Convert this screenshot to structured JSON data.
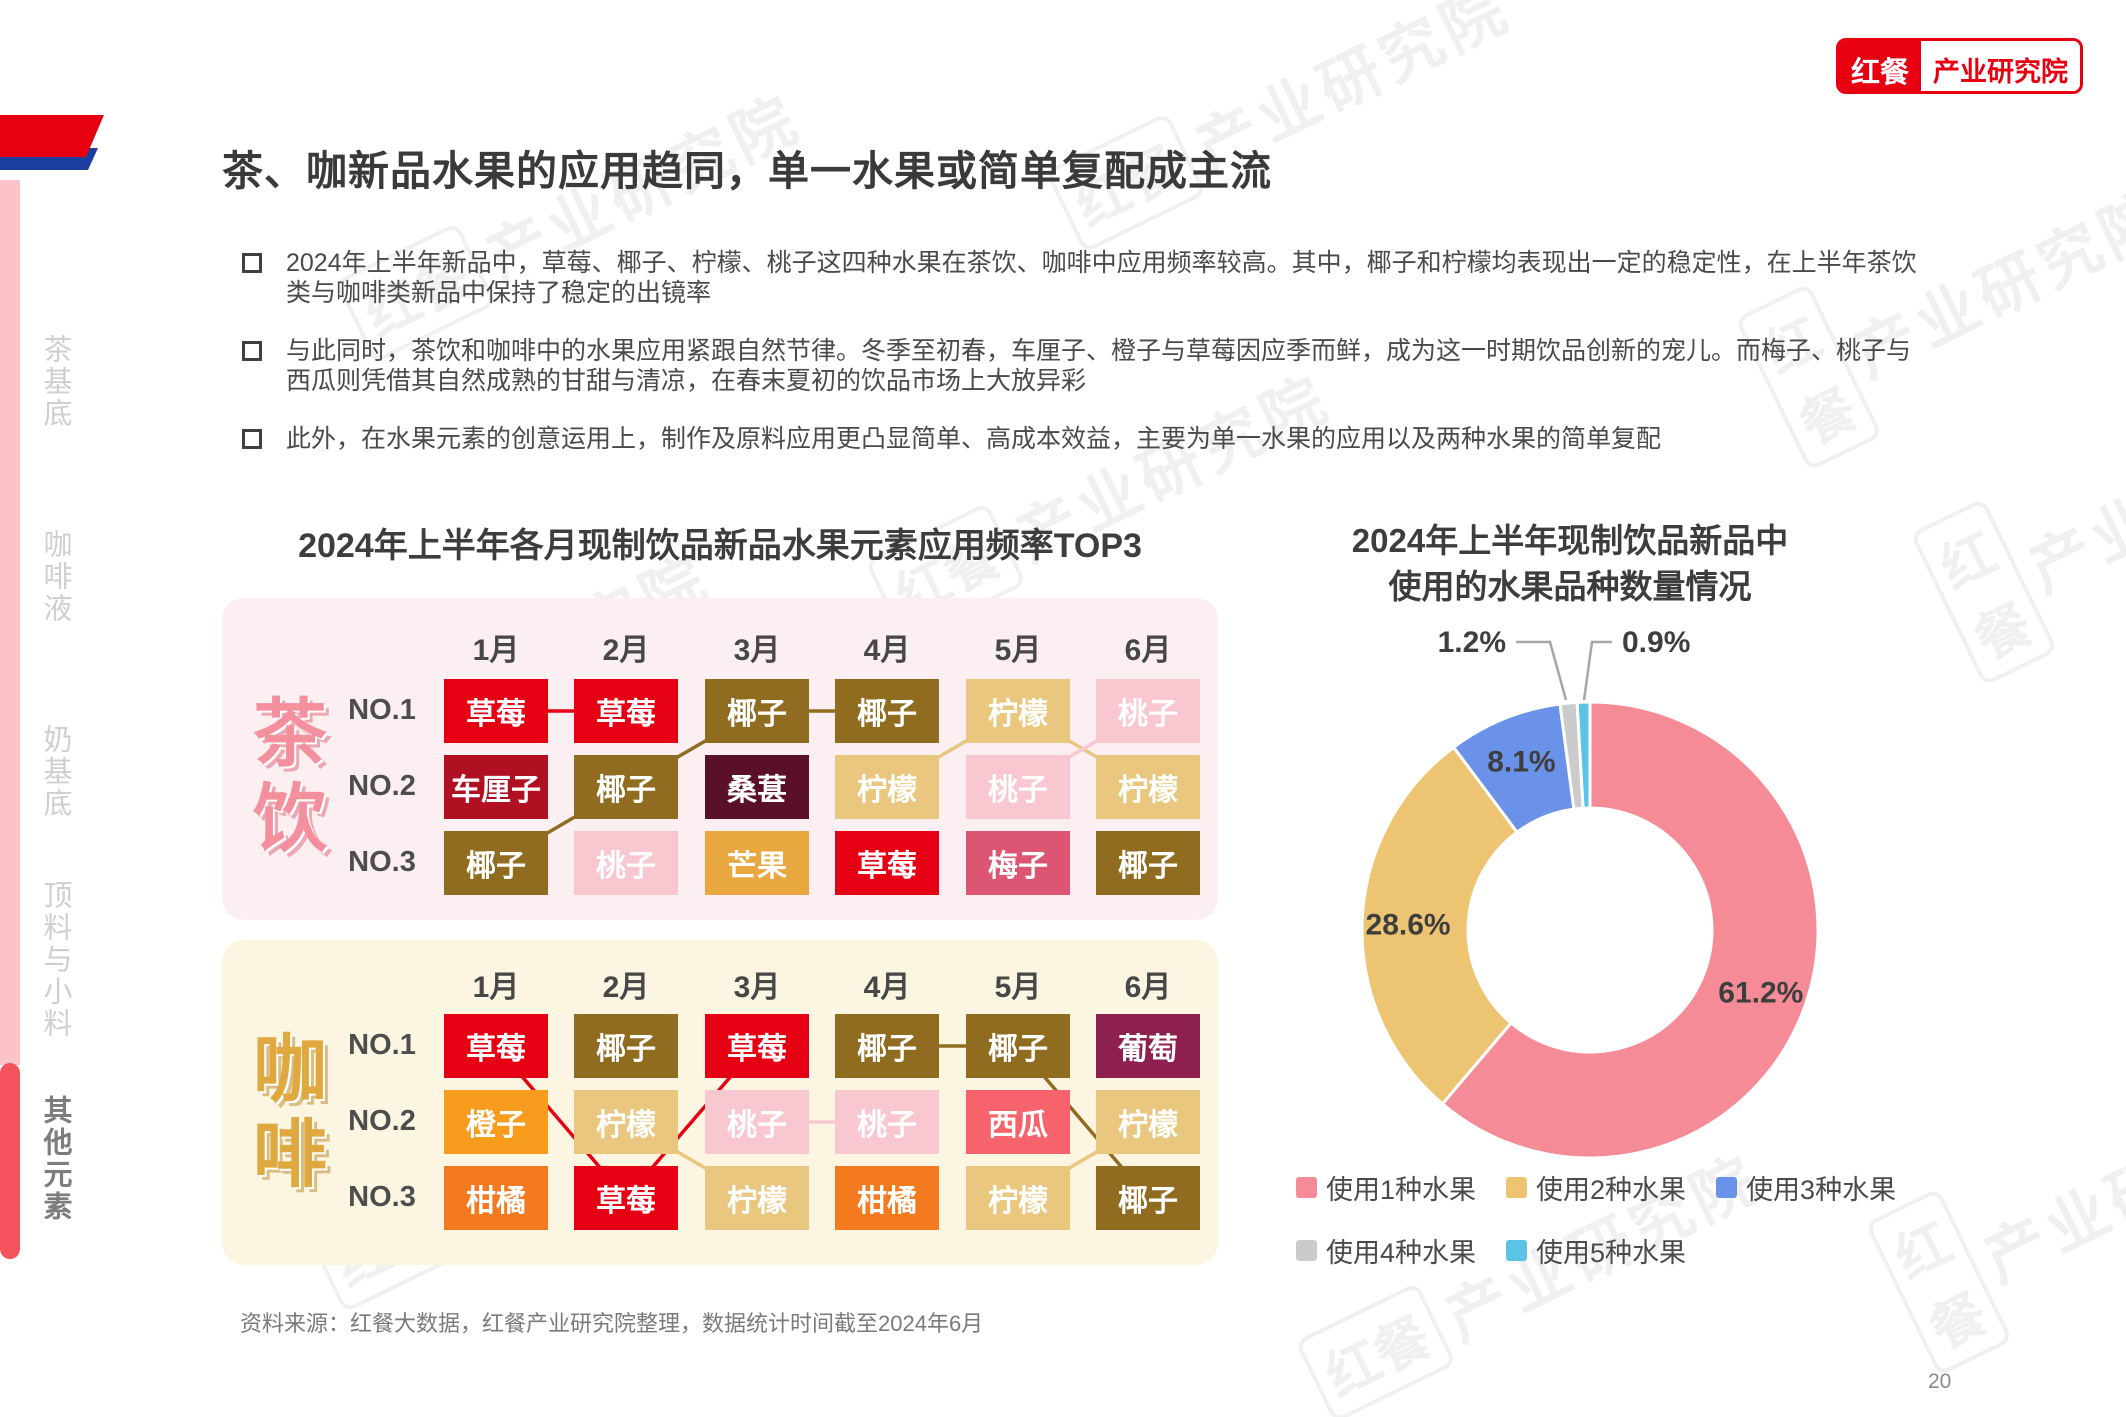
{
  "page": {
    "number": "20"
  },
  "logo": {
    "brand": "红餐",
    "institute": "产业研究院"
  },
  "watermark": {
    "brand": "红餐",
    "text": "产业研究院"
  },
  "sidebar": {
    "items": [
      {
        "label": "茶基底",
        "active": false
      },
      {
        "label": "咖啡液",
        "active": false
      },
      {
        "label": "奶基底",
        "active": false
      },
      {
        "label": "顶料与小料",
        "active": false
      },
      {
        "label": "其他元素",
        "active": true
      }
    ]
  },
  "header": {
    "title": "茶、咖新品水果的应用趋同，单一水果或简单复配成主流"
  },
  "bullets": [
    "2024年上半年新品中，草莓、椰子、柠檬、桃子这四种水果在茶饮、咖啡中应用频率较高。其中，椰子和柠檬均表现出一定的稳定性，在上半年茶饮类与咖啡类新品中保持了稳定的出镜率",
    "与此同时，茶饮和咖啡中的水果应用紧跟自然节律。冬季至初春，车厘子、橙子与草莓因应季而鲜，成为这一时期饮品创新的宠儿。而梅子、桃子与西瓜则凭借其自然成熟的甘甜与清凉，在春末夏初的饮品市场上大放异彩",
    "此外，在水果元素的创意运用上，制作及原料应用更凸显简单、高成本效益，主要为单一水果的应用以及两种水果的简单复配"
  ],
  "right_chart": {
    "title_line1": "2024年上半年现制饮品新品中",
    "title_line2": "使用的水果品种数量情况"
  },
  "fruit_colors": {
    "草莓": "#e60013",
    "车厘子": "#b01021",
    "椰子": "#8f6c1f",
    "桑葚": "#5a1026",
    "柠檬": "#eac77e",
    "桃子": "#f8c7cf",
    "芒果": "#e9a73f",
    "梅子": "#dc5573",
    "葡萄": "#8e2050",
    "橙子": "#f89c1e",
    "柑橘": "#f47a20",
    "西瓜": "#f7636c"
  },
  "left_chart": {
    "panels": [
      {
        "chars": [
          "茶",
          "饮"
        ],
        "bg": "#fbeff1",
        "theme": "tea",
        "links": [
          [
            [
              0,
              0
            ],
            [
              0,
              1
            ],
            "草莓"
          ],
          [
            [
              2,
              0
            ],
            [
              1,
              1
            ],
            "椰子"
          ],
          [
            [
              1,
              1
            ],
            [
              0,
              2
            ],
            "椰子"
          ],
          [
            [
              0,
              2
            ],
            [
              0,
              3
            ],
            "椰子"
          ],
          [
            [
              1,
              3
            ],
            [
              0,
              4
            ],
            "柠檬"
          ],
          [
            [
              0,
              4
            ],
            [
              1,
              5
            ],
            "柠檬"
          ],
          [
            [
              1,
              4
            ],
            [
              0,
              5
            ],
            "桃子"
          ]
        ]
      },
      {
        "chars": [
          "咖",
          "啡"
        ],
        "bg": "#fcf5e2",
        "theme": "coffee",
        "links": [
          [
            [
              0,
              0
            ],
            [
              2,
              1
            ],
            "草莓"
          ],
          [
            [
              2,
              1
            ],
            [
              0,
              2
            ],
            "草莓"
          ],
          [
            [
              1,
              1
            ],
            [
              2,
              2
            ],
            "柠檬"
          ],
          [
            [
              1,
              2
            ],
            [
              1,
              3
            ],
            "桃子"
          ],
          [
            [
              0,
              3
            ],
            [
              0,
              4
            ],
            "椰子"
          ],
          [
            [
              0,
              4
            ],
            [
              2,
              5
            ],
            "椰子"
          ],
          [
            [
              2,
              4
            ],
            [
              1,
              5
            ],
            "柠檬"
          ]
        ]
      }
    ]
  },
  "chart_data": [
    {
      "type": "table",
      "title": "2024年上半年各月现制饮品新品水果元素应用频率TOP3",
      "columns": [
        "1月",
        "2月",
        "3月",
        "4月",
        "5月",
        "6月"
      ],
      "groups": [
        {
          "name": "茶饮",
          "rows": [
            {
              "rank": "NO.1",
              "cells": [
                "草莓",
                "草莓",
                "椰子",
                "椰子",
                "柠檬",
                "桃子"
              ]
            },
            {
              "rank": "NO.2",
              "cells": [
                "车厘子",
                "椰子",
                "桑葚",
                "柠檬",
                "桃子",
                "柠檬"
              ]
            },
            {
              "rank": "NO.3",
              "cells": [
                "椰子",
                "桃子",
                "芒果",
                "草莓",
                "梅子",
                "椰子"
              ]
            }
          ]
        },
        {
          "name": "咖啡",
          "rows": [
            {
              "rank": "NO.1",
              "cells": [
                "草莓",
                "椰子",
                "草莓",
                "椰子",
                "椰子",
                "葡萄"
              ]
            },
            {
              "rank": "NO.2",
              "cells": [
                "橙子",
                "柠檬",
                "桃子",
                "桃子",
                "西瓜",
                "柠檬"
              ]
            },
            {
              "rank": "NO.3",
              "cells": [
                "柑橘",
                "草莓",
                "柠檬",
                "柑橘",
                "柠檬",
                "椰子"
              ]
            }
          ]
        }
      ]
    },
    {
      "type": "pie",
      "donut": true,
      "title": "2024年上半年现制饮品新品中使用的水果品种数量情况",
      "labels": [
        "使用1种水果",
        "使用2种水果",
        "使用3种水果",
        "使用4种水果",
        "使用5种水果"
      ],
      "values": [
        61.2,
        28.6,
        8.1,
        1.2,
        0.9
      ],
      "colors": [
        "#f58b96",
        "#edc472",
        "#6a92e8",
        "#cbcbcb",
        "#5ac3e6"
      ],
      "legend_position": "bottom"
    }
  ],
  "footer": {
    "source": "资料来源：红餐大数据，红餐产业研究院整理，数据统计时间截至2024年6月"
  }
}
